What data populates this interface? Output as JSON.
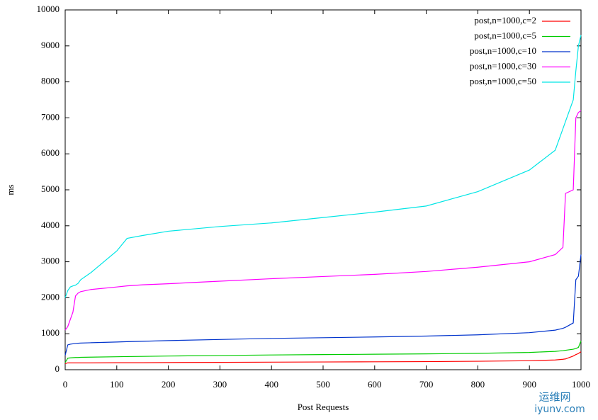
{
  "chart_data": {
    "type": "line",
    "xlabel": "Post Requests",
    "ylabel": "ms",
    "x": [
      0,
      5,
      10,
      15,
      20,
      25,
      30,
      50,
      100,
      120,
      150,
      200,
      300,
      400,
      500,
      600,
      700,
      800,
      900,
      950,
      965,
      970,
      985,
      990,
      995,
      1000
    ],
    "series": [
      {
        "name": "post,n=1000,c=2",
        "color": "#ff0000",
        "values": [
          170,
          190,
          190,
          190,
          190,
          190,
          190,
          190,
          195,
          195,
          195,
          200,
          205,
          210,
          215,
          220,
          225,
          235,
          250,
          270,
          290,
          300,
          380,
          420,
          450,
          500
        ]
      },
      {
        "name": "post,n=1000,c=5",
        "color": "#00cc00",
        "values": [
          200,
          320,
          330,
          335,
          340,
          340,
          345,
          350,
          360,
          365,
          370,
          380,
          395,
          410,
          420,
          430,
          440,
          455,
          480,
          510,
          530,
          540,
          570,
          590,
          620,
          800
        ]
      },
      {
        "name": "post,n=1000,c=10",
        "color": "#0033cc",
        "values": [
          400,
          690,
          710,
          720,
          730,
          735,
          740,
          750,
          770,
          780,
          790,
          810,
          840,
          870,
          890,
          910,
          935,
          970,
          1030,
          1100,
          1150,
          1180,
          1300,
          2500,
          2600,
          3200
        ]
      },
      {
        "name": "post,n=1000,c=30",
        "color": "#ff00ff",
        "values": [
          1100,
          1200,
          1400,
          1600,
          2050,
          2130,
          2170,
          2230,
          2300,
          2330,
          2360,
          2390,
          2460,
          2530,
          2590,
          2650,
          2730,
          2850,
          3000,
          3200,
          3400,
          4900,
          5000,
          7000,
          7150,
          7200
        ]
      },
      {
        "name": "post,n=1000,c=50",
        "color": "#00e5e5",
        "values": [
          2000,
          2200,
          2300,
          2330,
          2350,
          2400,
          2500,
          2700,
          3300,
          3650,
          3730,
          3850,
          3980,
          4080,
          4230,
          4380,
          4550,
          4950,
          5550,
          6100,
          6700,
          6900,
          7500,
          8300,
          9000,
          9300
        ]
      }
    ],
    "xlim": [
      0,
      1000
    ],
    "xticks": [
      0,
      100,
      200,
      300,
      400,
      500,
      600,
      700,
      800,
      900,
      1000
    ],
    "ylim": [
      0,
      10000
    ],
    "yticks": [
      0,
      1000,
      2000,
      3000,
      4000,
      5000,
      6000,
      7000,
      8000,
      9000,
      10000
    ],
    "legend": "top-right",
    "watermark": [
      "运维网",
      "iyunv.com"
    ]
  }
}
